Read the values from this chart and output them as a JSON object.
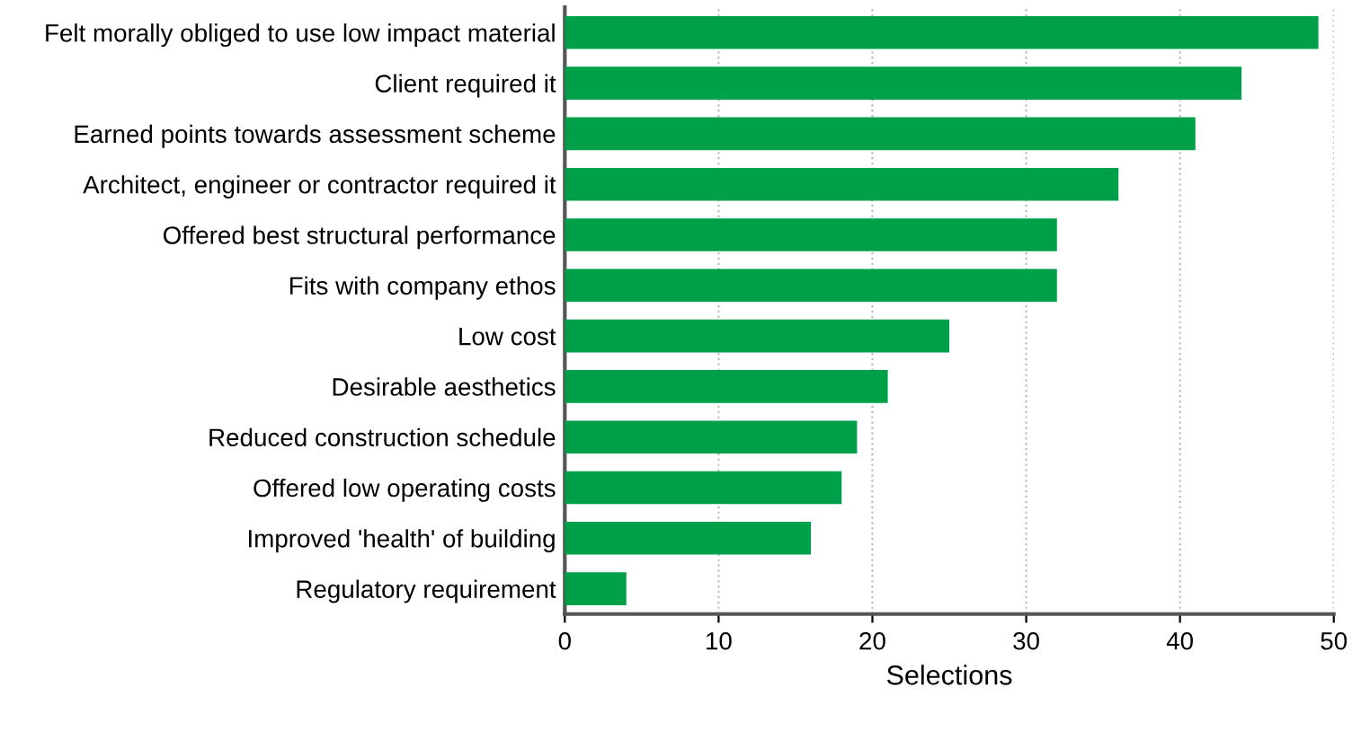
{
  "chart_data": {
    "type": "bar",
    "orientation": "horizontal",
    "xlabel": "Selections",
    "categories": [
      "Felt morally obliged to use low impact material",
      "Client required it",
      "Earned points towards assessment scheme",
      "Architect, engineer or contractor required it",
      "Offered best structural performance",
      "Fits with company ethos",
      "Low cost",
      "Desirable aesthetics",
      "Reduced construction schedule",
      "Offered low operating costs",
      "Improved 'health' of building",
      "Regulatory requirement"
    ],
    "values": [
      49,
      44,
      41,
      36,
      32,
      32,
      25,
      21,
      19,
      18,
      16,
      4
    ],
    "color": "#00a04a",
    "xlim": [
      0,
      50
    ],
    "xticks": [
      0,
      10,
      20,
      30,
      40,
      50
    ],
    "grid": "x"
  }
}
